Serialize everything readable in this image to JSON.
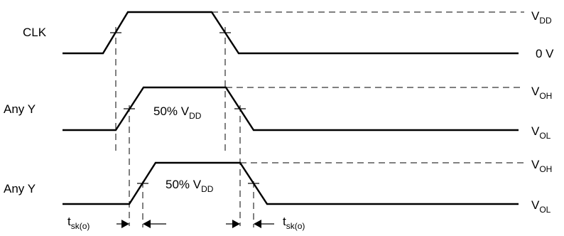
{
  "signals": {
    "clk": "CLK",
    "y1": "Any Y",
    "y2": "Any Y"
  },
  "levels": {
    "vdd_main": "V",
    "vdd_sub": "DD",
    "zero": "0 V",
    "voh1_main": "V",
    "voh1_sub": "OH",
    "vol1_main": "V",
    "vol1_sub": "OL",
    "voh2_main": "V",
    "voh2_sub": "OH",
    "vol2_main": "V",
    "vol2_sub": "OL"
  },
  "midlabels": {
    "y1_main": "50% V",
    "y1_sub": "DD",
    "y2_main": "50% V",
    "y2_sub": "DD"
  },
  "skew": {
    "left_main": "t",
    "left_sub": "sk(o)",
    "right_main": "t",
    "right_sub": "sk(o)"
  }
}
